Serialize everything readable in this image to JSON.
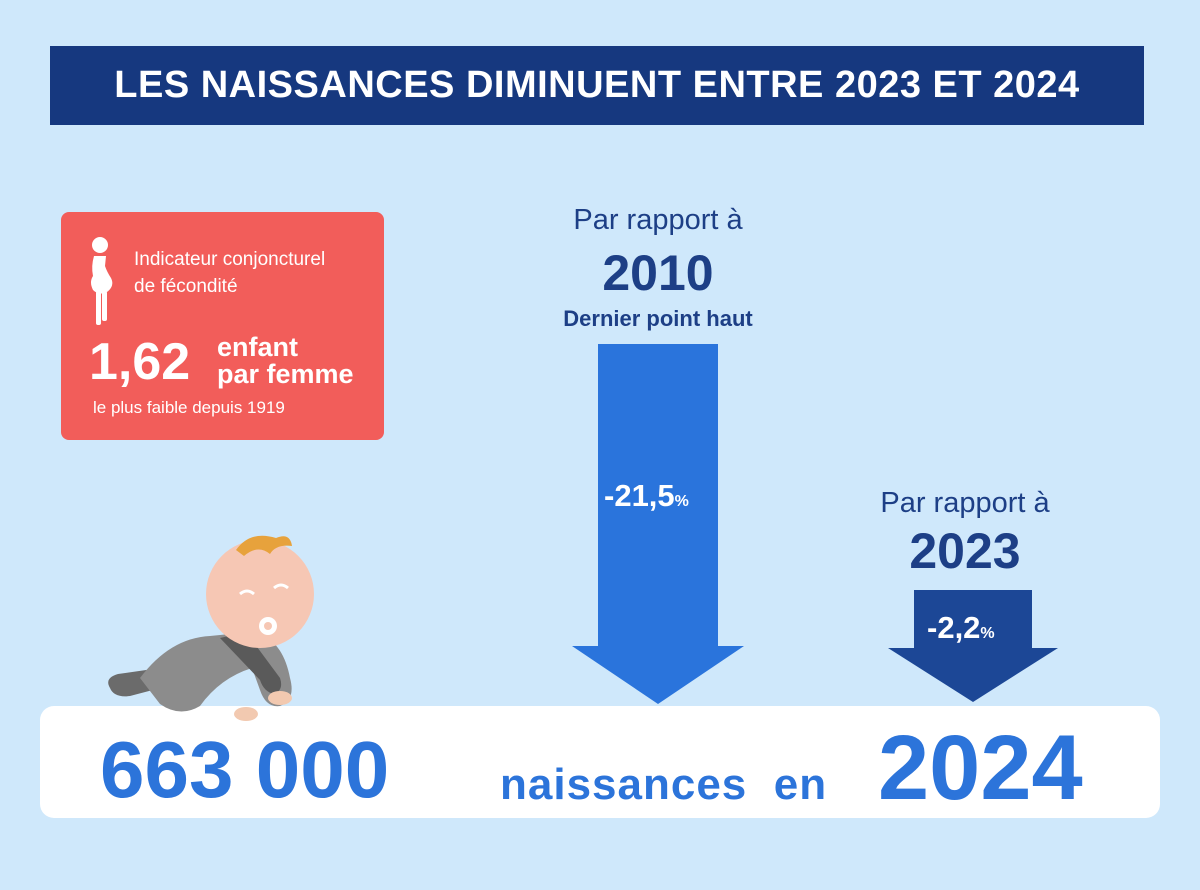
{
  "title": "LES NAISSANCES DIMINUENT ENTRE 2023 ET 2024",
  "fertility_card": {
    "label_line1": "Indicateur conjoncturel",
    "label_line2": "de fécondité",
    "value": "1,62",
    "unit_line1": "enfant",
    "unit_line2": "par femme",
    "note": "le plus faible  depuis 1919",
    "icon": "pregnant-woman-icon"
  },
  "compare_2010": {
    "caption": "Par rapport à",
    "year": "2010",
    "subcaption": "Dernier point haut",
    "change": "-21,5",
    "percent": "%"
  },
  "compare_2023": {
    "caption": "Par rapport à",
    "year": "2023",
    "change": "-2,2",
    "percent": "%"
  },
  "births": {
    "count": "663 000",
    "label": "naissances  en",
    "year": "2024"
  },
  "colors": {
    "background": "#cfe8fb",
    "banner": "#16387f",
    "card": "#f25d5a",
    "arrow_big": "#2a74dc",
    "arrow_small": "#1c4796",
    "accent_text": "#2c74da"
  },
  "illustration": "crawling-baby-icon"
}
